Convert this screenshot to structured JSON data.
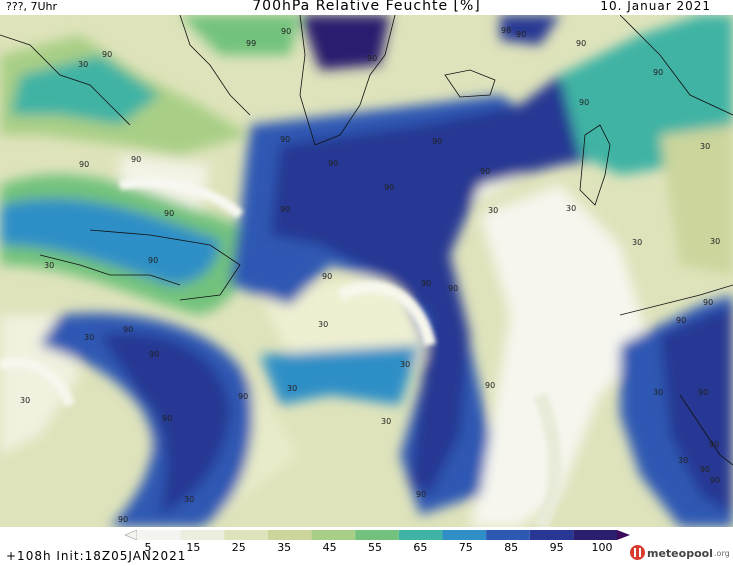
{
  "header": {
    "left": "???, 7Uhr",
    "title": "700hPa Relative Feuchte [%]",
    "date": "10. Januar 2021"
  },
  "footer": {
    "init": "+108h Init:18Z05JAN2021",
    "logo_text": "meteopool",
    "logo_ext": ".org"
  },
  "colorbar": {
    "ticks": [
      "5",
      "15",
      "25",
      "35",
      "45",
      "55",
      "65",
      "75",
      "85",
      "95",
      "100"
    ],
    "colors": [
      "#f4f4f0",
      "#eceee0",
      "#dfe3bb",
      "#cbd59c",
      "#a9cf86",
      "#72c27d",
      "#3fb3a4",
      "#2f8fc6",
      "#2d59b3",
      "#283793",
      "#2a1e6e",
      "#3b0a5a"
    ]
  },
  "contour_labels": [
    "90",
    "30",
    "99",
    "98"
  ]
}
